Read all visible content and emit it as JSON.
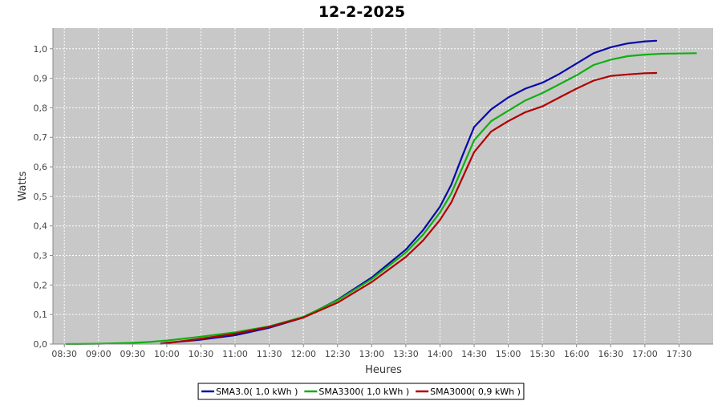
{
  "chart_data": {
    "type": "line",
    "title": "12-2-2025",
    "xlabel": "Heures",
    "ylabel": "Watts",
    "x_ticks": [
      "08:30",
      "09:00",
      "09:30",
      "10:00",
      "10:30",
      "11:00",
      "11:30",
      "12:00",
      "12:30",
      "13:00",
      "13:30",
      "14:00",
      "14:30",
      "15:00",
      "15:30",
      "16:00",
      "16:30",
      "17:00",
      "17:30"
    ],
    "xlim": [
      "08:20",
      "18:00"
    ],
    "y_ticks": [
      "0,0",
      "0,1",
      "0,2",
      "0,3",
      "0,4",
      "0,5",
      "0,6",
      "0,7",
      "0,8",
      "0,9",
      "1,0"
    ],
    "ylim": [
      0,
      1.07
    ],
    "grid": true,
    "legend_position": "bottom",
    "background": "#c8c8c8",
    "series": [
      {
        "name": "SMA3.0( 1,0 kWh )",
        "color": "#0a0aa8",
        "points": [
          [
            "09:55",
            0.002
          ],
          [
            "10:00",
            0.004
          ],
          [
            "10:30",
            0.015
          ],
          [
            "11:00",
            0.03
          ],
          [
            "11:30",
            0.055
          ],
          [
            "12:00",
            0.09
          ],
          [
            "12:30",
            0.15
          ],
          [
            "13:00",
            0.225
          ],
          [
            "13:30",
            0.32
          ],
          [
            "13:45",
            0.385
          ],
          [
            "14:00",
            0.465
          ],
          [
            "14:10",
            0.54
          ],
          [
            "14:20",
            0.64
          ],
          [
            "14:30",
            0.735
          ],
          [
            "14:45",
            0.795
          ],
          [
            "15:00",
            0.835
          ],
          [
            "15:15",
            0.865
          ],
          [
            "15:30",
            0.885
          ],
          [
            "15:45",
            0.915
          ],
          [
            "16:00",
            0.95
          ],
          [
            "16:15",
            0.985
          ],
          [
            "16:30",
            1.005
          ],
          [
            "16:45",
            1.018
          ],
          [
            "17:00",
            1.025
          ],
          [
            "17:10",
            1.027
          ]
        ]
      },
      {
        "name": "SMA3300( 1,0 kWh )",
        "color": "#10b010",
        "points": [
          [
            "08:32",
            0.0
          ],
          [
            "09:00",
            0.001
          ],
          [
            "09:30",
            0.004
          ],
          [
            "09:45",
            0.007
          ],
          [
            "10:00",
            0.012
          ],
          [
            "10:30",
            0.025
          ],
          [
            "11:00",
            0.04
          ],
          [
            "11:30",
            0.06
          ],
          [
            "12:00",
            0.092
          ],
          [
            "12:30",
            0.148
          ],
          [
            "13:00",
            0.22
          ],
          [
            "13:30",
            0.31
          ],
          [
            "13:45",
            0.37
          ],
          [
            "14:00",
            0.445
          ],
          [
            "14:10",
            0.51
          ],
          [
            "14:20",
            0.6
          ],
          [
            "14:30",
            0.69
          ],
          [
            "14:45",
            0.755
          ],
          [
            "15:00",
            0.79
          ],
          [
            "15:15",
            0.825
          ],
          [
            "15:30",
            0.85
          ],
          [
            "15:45",
            0.88
          ],
          [
            "16:00",
            0.91
          ],
          [
            "16:15",
            0.945
          ],
          [
            "16:30",
            0.963
          ],
          [
            "16:45",
            0.975
          ],
          [
            "17:00",
            0.98
          ],
          [
            "17:15",
            0.983
          ],
          [
            "17:30",
            0.984
          ],
          [
            "17:45",
            0.985
          ]
        ]
      },
      {
        "name": "SMA3000( 0,9 kWh )",
        "color": "#b00000",
        "points": [
          [
            "09:55",
            0.001
          ],
          [
            "10:00",
            0.003
          ],
          [
            "10:30",
            0.018
          ],
          [
            "11:00",
            0.035
          ],
          [
            "11:30",
            0.058
          ],
          [
            "12:00",
            0.09
          ],
          [
            "12:30",
            0.14
          ],
          [
            "13:00",
            0.21
          ],
          [
            "13:30",
            0.295
          ],
          [
            "13:45",
            0.35
          ],
          [
            "14:00",
            0.42
          ],
          [
            "14:10",
            0.48
          ],
          [
            "14:20",
            0.565
          ],
          [
            "14:30",
            0.65
          ],
          [
            "14:45",
            0.72
          ],
          [
            "15:00",
            0.755
          ],
          [
            "15:15",
            0.785
          ],
          [
            "15:30",
            0.805
          ],
          [
            "15:45",
            0.835
          ],
          [
            "16:00",
            0.865
          ],
          [
            "16:15",
            0.892
          ],
          [
            "16:30",
            0.908
          ],
          [
            "16:45",
            0.913
          ],
          [
            "17:00",
            0.917
          ],
          [
            "17:10",
            0.918
          ]
        ]
      }
    ]
  }
}
